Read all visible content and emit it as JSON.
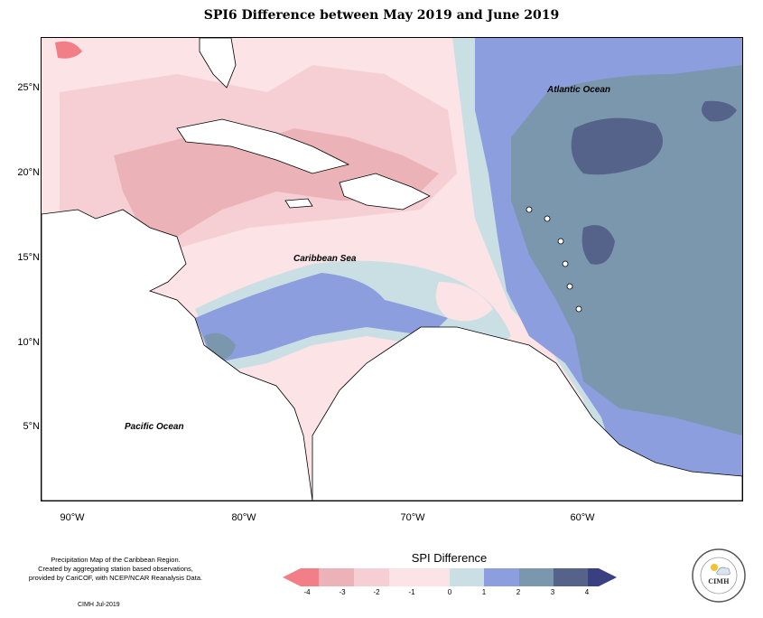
{
  "title": "SPI6 Difference between May 2019 and June 2019",
  "colors": {
    "m4": "#f27f87",
    "m3": "#ebb3b7",
    "m2": "#f6cfd4",
    "m1": "#fbe3e6",
    "z0": "#c9dfe3",
    "p1": "#8d9ede",
    "p2": "#7b97ad",
    "p3": "#55628a",
    "p4": "#3a3f82",
    "land": "#ffffff",
    "coast": "#000000"
  },
  "axes": {
    "lat_labels": [
      "25°N",
      "20°N",
      "15°N",
      "10°N",
      "5°N"
    ],
    "lon_labels": [
      "90°W",
      "80°W",
      "70°W",
      "60°W"
    ]
  },
  "labels": {
    "atlantic": "Atlantic Ocean",
    "caribbean": "Caribbean Sea",
    "pacific": "Pacific Ocean"
  },
  "notes": {
    "line1": "Precipitation Map of the Caribbean Region.",
    "line2": "Created by aggregating station based observations,",
    "line3": "provided by CariCOF, with NCEP/NCAR Reanalysis Data.",
    "credit": "CIMH Jul-2019"
  },
  "legend": {
    "title": "SPI Difference",
    "ticks": [
      "-4",
      "-3",
      "-2",
      "-1",
      "0",
      "1",
      "2",
      "3",
      "4"
    ]
  },
  "logo": {
    "text": "CIMH",
    "icon": "cimh-logo-icon"
  }
}
